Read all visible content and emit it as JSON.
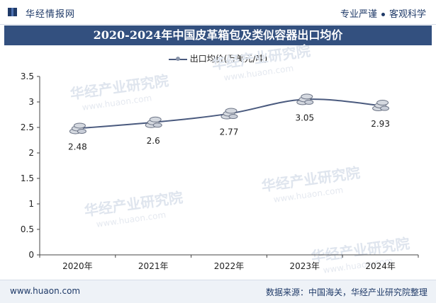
{
  "header": {
    "brand": "华经情报网",
    "tagline_left": "专业严谨",
    "tagline_right": "客观科学"
  },
  "footer": {
    "url": "www.huaon.com",
    "source": "数据来源：中国海关，华经产业研究院整理"
  },
  "watermark": {
    "text": "华经产业研究院",
    "url": "www.huaon.com"
  },
  "colors": {
    "title_bar": "#33507f",
    "line": "#4a5a7e",
    "brand": "#1f3a68"
  },
  "chart_data": {
    "type": "line",
    "title": "2020-2024年中国皮革箱包及类似容器出口均价",
    "categories": [
      "2020年",
      "2021年",
      "2022年",
      "2023年",
      "2024年"
    ],
    "series": [
      {
        "name": "出口均价(万美元/吨)",
        "values": [
          2.48,
          2.6,
          2.77,
          3.05,
          2.93
        ]
      }
    ],
    "data_labels": [
      "2.48",
      "2.6",
      "2.77",
      "3.05",
      "2.93"
    ],
    "ylim": [
      0,
      3.5
    ],
    "yticks": [
      "0",
      "0.5",
      "1",
      "1.5",
      "2",
      "2.5",
      "3",
      "3.5"
    ],
    "grid": false,
    "legend": "top-center",
    "marker": "coin-stack-icon"
  }
}
